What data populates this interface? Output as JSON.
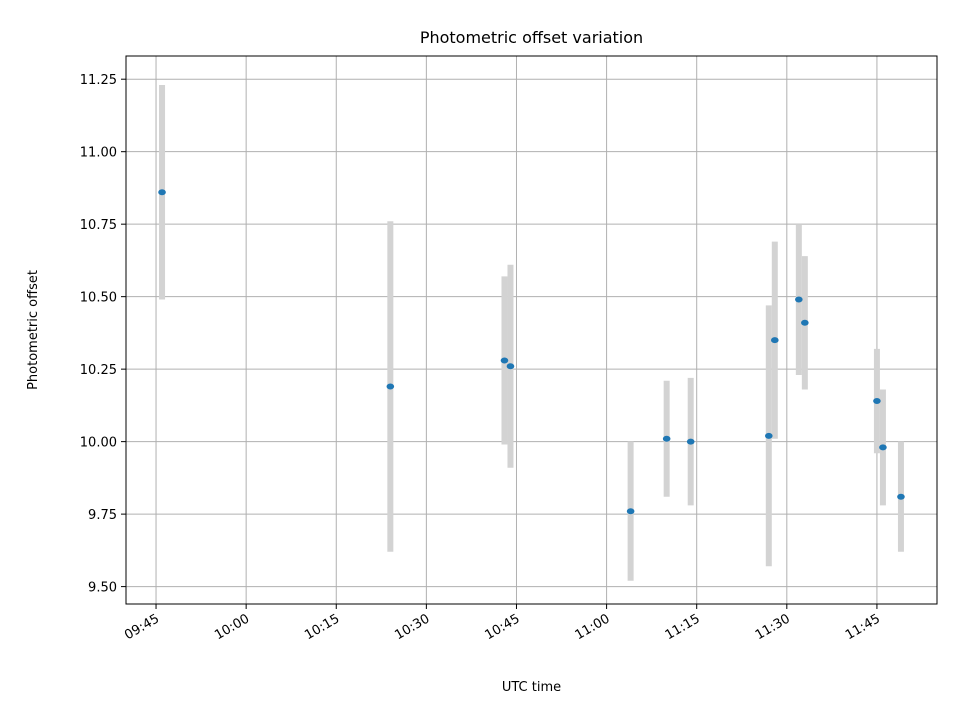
{
  "chart_data": {
    "type": "scatter",
    "title": "Photometric offset variation",
    "xlabel": "UTC time",
    "ylabel": "Photometric offset",
    "xlim": [
      "09:40",
      "11:55"
    ],
    "ylim": [
      9.44,
      11.33
    ],
    "x_ticks": [
      "09:45",
      "10:00",
      "10:15",
      "10:30",
      "10:45",
      "11:00",
      "11:15",
      "11:30",
      "11:45"
    ],
    "y_ticks": [
      9.5,
      9.75,
      10.0,
      10.25,
      10.5,
      10.75,
      11.0,
      11.25
    ],
    "y_tick_labels": [
      "9.50",
      "9.75",
      "10.00",
      "10.25",
      "10.50",
      "10.75",
      "11.00",
      "11.25"
    ],
    "grid": true,
    "legend": "none",
    "series": [
      {
        "points": [
          {
            "x": "09:46",
            "y": 10.86,
            "err": 0.37
          },
          {
            "x": "10:24",
            "y": 10.19,
            "err": 0.57
          },
          {
            "x": "10:43",
            "y": 10.28,
            "err": 0.29
          },
          {
            "x": "10:44",
            "y": 10.26,
            "err": 0.35
          },
          {
            "x": "11:04",
            "y": 9.76,
            "err": 0.24
          },
          {
            "x": "11:10",
            "y": 10.01,
            "err": 0.2
          },
          {
            "x": "11:14",
            "y": 10.0,
            "err": 0.22
          },
          {
            "x": "11:27",
            "y": 10.02,
            "err": 0.45
          },
          {
            "x": "11:28",
            "y": 10.35,
            "err": 0.34
          },
          {
            "x": "11:32",
            "y": 10.49,
            "err": 0.26
          },
          {
            "x": "11:33",
            "y": 10.41,
            "err": 0.23
          },
          {
            "x": "11:45",
            "y": 10.14,
            "err": 0.18
          },
          {
            "x": "11:46",
            "y": 9.98,
            "err": 0.2
          },
          {
            "x": "11:49",
            "y": 9.81,
            "err": 0.19
          }
        ]
      }
    ],
    "colors": {
      "marker": "#1f77b4",
      "errorbar": "#d3d3d3",
      "grid": "#b0b0b0",
      "axes": "#000000"
    }
  }
}
